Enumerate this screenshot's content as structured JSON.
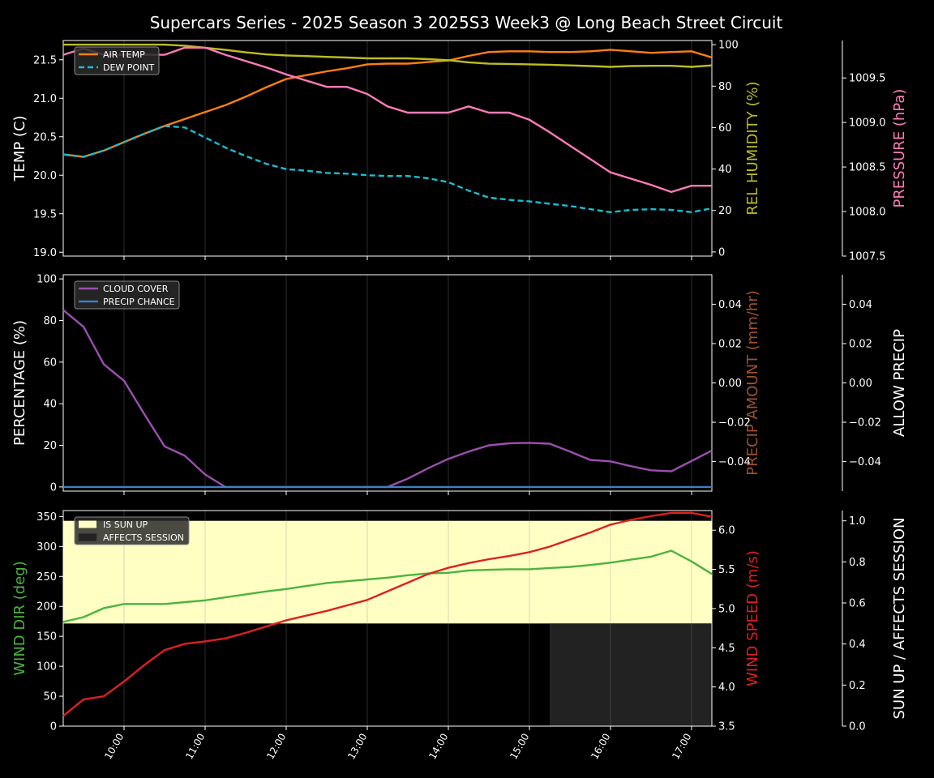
{
  "title": "Supercars Series - 2025 Season 3 2025S3 Week3 @ Long Beach Street Circuit",
  "x_tick_labels": [
    "10:00",
    "11:00",
    "12:00",
    "13:00",
    "14:00",
    "15:00",
    "16:00",
    "17:00"
  ],
  "chart_data": [
    {
      "type": "line",
      "panel": "temperature",
      "x_unit": "hours (local time)",
      "x": [
        9.25,
        9.5,
        9.75,
        10.0,
        10.25,
        10.5,
        10.75,
        11.0,
        11.25,
        11.5,
        11.75,
        12.0,
        12.25,
        12.5,
        12.75,
        13.0,
        13.25,
        13.5,
        13.75,
        14.0,
        14.25,
        14.5,
        14.75,
        15.0,
        15.25,
        15.5,
        15.75,
        16.0,
        16.25,
        16.5,
        16.75,
        17.0,
        17.25
      ],
      "axes": {
        "left": {
          "label": "TEMP (C)",
          "ylim": [
            18.95,
            21.75
          ],
          "ticks": [
            "19.0",
            "19.5",
            "20.0",
            "20.5",
            "21.0",
            "21.5"
          ]
        },
        "right1": {
          "label": "REL HUMIDITY (%)",
          "ylim": [
            -2,
            102
          ],
          "ticks": [
            "0",
            "20",
            "40",
            "60",
            "80",
            "100"
          ]
        },
        "right2": {
          "label": "PRESSURE (hPa)",
          "ylim": [
            1007.5,
            1009.92
          ],
          "ticks": [
            "1007.5",
            "1008.0",
            "1008.5",
            "1009.0",
            "1009.5"
          ]
        }
      },
      "legend": {
        "placement": "top-left",
        "entries": [
          "AIR TEMP",
          "DEW POINT"
        ]
      },
      "series": [
        {
          "name": "AIR TEMP",
          "axis": "left",
          "color": "#ff7f0e",
          "dash": false,
          "values": [
            20.27,
            20.24,
            20.32,
            20.43,
            20.54,
            20.64,
            20.73,
            20.82,
            20.91,
            21.02,
            21.14,
            21.25,
            21.3,
            21.35,
            21.39,
            21.44,
            21.45,
            21.45,
            21.47,
            21.49,
            21.55,
            21.6,
            21.61,
            21.61,
            21.6,
            21.6,
            21.61,
            21.63,
            21.61,
            21.59,
            21.6,
            21.61,
            21.53
          ]
        },
        {
          "name": "DEW POINT",
          "axis": "left",
          "color": "#17becf",
          "dash": true,
          "values": [
            20.27,
            20.24,
            20.32,
            20.43,
            20.54,
            20.64,
            20.62,
            20.49,
            20.36,
            20.25,
            20.15,
            20.08,
            20.06,
            20.03,
            20.02,
            20.0,
            19.99,
            19.99,
            19.96,
            19.91,
            19.8,
            19.71,
            19.68,
            19.66,
            19.63,
            19.6,
            19.56,
            19.52,
            19.55,
            19.56,
            19.55,
            19.52,
            19.57
          ]
        },
        {
          "name": "REL HUMIDITY",
          "axis": "right1",
          "color": "#bcbd22",
          "dash": false,
          "values": [
            100,
            100,
            100,
            100,
            100,
            100,
            99.5,
            98.5,
            97.5,
            96.3,
            95.3,
            94.8,
            94.5,
            94.1,
            93.8,
            93.4,
            93.4,
            93.4,
            93.0,
            92.5,
            91.5,
            90.8,
            90.7,
            90.5,
            90.3,
            90.0,
            89.7,
            89.3,
            89.7,
            89.8,
            89.8,
            89.3,
            90.0
          ]
        },
        {
          "name": "PRESSURE",
          "axis": "right2",
          "color": "#ff7ab8",
          "dash": false,
          "values": [
            1009.76,
            1009.83,
            1009.76,
            1009.76,
            1009.76,
            1009.76,
            1009.84,
            1009.84,
            1009.76,
            1009.69,
            1009.62,
            1009.54,
            1009.47,
            1009.4,
            1009.4,
            1009.32,
            1009.18,
            1009.11,
            1009.11,
            1009.11,
            1009.18,
            1009.11,
            1009.11,
            1009.03,
            1008.89,
            1008.74,
            1008.59,
            1008.44,
            1008.37,
            1008.3,
            1008.22,
            1008.29,
            1008.29
          ]
        }
      ]
    },
    {
      "type": "line",
      "panel": "precipitation",
      "x_unit": "hours (local time)",
      "x": [
        9.25,
        9.5,
        9.75,
        10.0,
        10.25,
        10.5,
        10.75,
        11.0,
        11.25,
        11.5,
        11.75,
        12.0,
        12.25,
        12.5,
        12.75,
        13.0,
        13.25,
        13.5,
        13.75,
        14.0,
        14.25,
        14.5,
        14.75,
        15.0,
        15.25,
        15.5,
        15.75,
        16.0,
        16.25,
        16.5,
        16.75,
        17.0,
        17.25
      ],
      "axes": {
        "left": {
          "label": "PERCENTAGE (%)",
          "ylim": [
            -2,
            102
          ],
          "ticks": [
            "0",
            "20",
            "40",
            "60",
            "80",
            "100"
          ]
        },
        "right1": {
          "label": "PRECIP AMOUNT (mm/hr)",
          "ylim": [
            -0.055,
            0.055
          ],
          "ticks": [
            "−0.04",
            "−0.02",
            "0.00",
            "0.02",
            "0.04"
          ]
        },
        "right2": {
          "label": "ALLOW PRECIP",
          "ylim": [
            -0.055,
            0.055
          ],
          "ticks": [
            "−0.04",
            "−0.02",
            "0.00",
            "0.02",
            "0.04"
          ]
        }
      },
      "legend": {
        "placement": "top-left",
        "entries": [
          "CLOUD COVER",
          "PRECIP CHANCE"
        ]
      },
      "series": [
        {
          "name": "CLOUD COVER",
          "axis": "left",
          "color": "#9b4fb0",
          "values": [
            85,
            77,
            59,
            51,
            35,
            19.5,
            15,
            6,
            0,
            0,
            0,
            0,
            0,
            0,
            0,
            0,
            0,
            4,
            9,
            13.5,
            17,
            20,
            21,
            21.2,
            20.8,
            17,
            13,
            12.3,
            10,
            8,
            7.5,
            12.5,
            17.5
          ]
        },
        {
          "name": "PRECIP CHANCE",
          "axis": "left",
          "color": "#3f7fc4",
          "values": [
            0,
            0,
            0,
            0,
            0,
            0,
            0,
            0,
            0,
            0,
            0,
            0,
            0,
            0,
            0,
            0,
            0,
            0,
            0,
            0,
            0,
            0,
            0,
            0,
            0,
            0,
            0,
            0,
            0,
            0,
            0,
            0,
            0
          ]
        }
      ]
    },
    {
      "type": "line",
      "panel": "wind",
      "x_unit": "hours (local time)",
      "x": [
        9.25,
        9.5,
        9.75,
        10.0,
        10.25,
        10.5,
        10.75,
        11.0,
        11.25,
        11.5,
        11.75,
        12.0,
        12.25,
        12.5,
        12.75,
        13.0,
        13.25,
        13.5,
        13.75,
        14.0,
        14.25,
        14.5,
        14.75,
        15.0,
        15.25,
        15.5,
        15.75,
        16.0,
        16.25,
        16.5,
        16.75,
        17.0,
        17.25
      ],
      "axes": {
        "left": {
          "label": "WIND DIR (deg)",
          "ylim": [
            0,
            360
          ],
          "ticks": [
            "0",
            "50",
            "100",
            "150",
            "200",
            "250",
            "300",
            "350"
          ]
        },
        "right1": {
          "label": "WIND SPEED (m/s)",
          "ylim": [
            3.5,
            6.25
          ],
          "ticks": [
            "3.5",
            "4.0",
            "4.5",
            "5.0",
            "5.5",
            "6.0"
          ]
        },
        "right2": {
          "label": "SUN UP / AFFECTS SESSION",
          "ylim": [
            0,
            1.05
          ],
          "ticks": [
            "0.0",
            "0.2",
            "0.4",
            "0.6",
            "0.8",
            "1.0"
          ]
        }
      },
      "legend": {
        "placement": "top-left",
        "entries": [
          "IS SUN UP",
          "AFFECTS SESSION"
        ]
      },
      "shaded_regions": [
        {
          "name": "IS SUN UP",
          "color": "#ffffc4",
          "x_range": [
            9.25,
            17.25
          ],
          "y_range_right2": [
            0.5,
            1.0
          ]
        },
        {
          "name": "AFFECTS SESSION",
          "color": "#222222",
          "x_range": [
            15.25,
            17.25
          ],
          "y_range_right2": [
            0,
            0.5
          ]
        }
      ],
      "series": [
        {
          "name": "WIND DIR",
          "axis": "left",
          "color": "#4db33d",
          "values": [
            174,
            182,
            197,
            204,
            204,
            204,
            207,
            210,
            215,
            220,
            225,
            229,
            234,
            239,
            242,
            245,
            248,
            252,
            255,
            256,
            260,
            261,
            262,
            262,
            264,
            266,
            269,
            273,
            278,
            283,
            293,
            275,
            254
          ]
        },
        {
          "name": "WIND SPEED",
          "axis": "right1",
          "color": "#dd2020",
          "values": [
            3.63,
            3.84,
            3.88,
            4.07,
            4.28,
            4.47,
            4.55,
            4.58,
            4.62,
            4.69,
            4.77,
            4.85,
            4.91,
            4.97,
            5.04,
            5.11,
            5.22,
            5.33,
            5.44,
            5.52,
            5.58,
            5.63,
            5.67,
            5.72,
            5.79,
            5.88,
            5.97,
            6.07,
            6.13,
            6.18,
            6.22,
            6.22,
            6.17
          ]
        }
      ]
    }
  ]
}
